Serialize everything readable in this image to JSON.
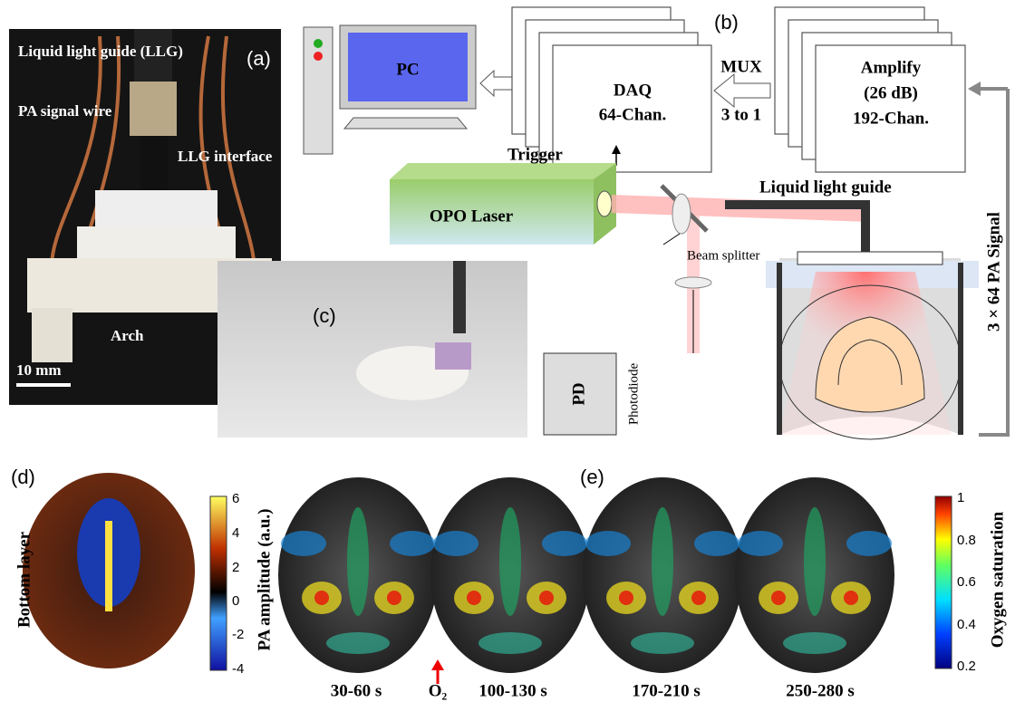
{
  "panel_a": {
    "label": "(a)",
    "annotations": [
      "Liquid light guide (LLG)",
      "PA signal wire",
      "LLG interface",
      "Arch"
    ],
    "scale_bar": "10 mm"
  },
  "panel_b": {
    "label": "(b)",
    "pc": "PC",
    "daq": [
      "DAQ",
      "64-Chan."
    ],
    "mux": [
      "MUX",
      "3 to 1"
    ],
    "amplify": [
      "Amplify",
      "(26 dB)",
      "192-Chan."
    ],
    "signal": "3 × 64 PA Signal",
    "trigger": "Trigger",
    "laser": "OPO Laser",
    "light_guide": "Liquid light guide",
    "beam_splitter": "Beam splitter",
    "pd": "PD",
    "photodiode": "Photodiode"
  },
  "panel_c": {
    "label": "(c)"
  },
  "panel_d": {
    "label": "(d)",
    "layer": "Bottom layer",
    "colorbar_title": "PA amplitude (a.u.)",
    "colorbar_ticks": [
      6,
      4,
      2,
      0,
      -2,
      -4
    ]
  },
  "panel_e": {
    "label": "(e)",
    "times": [
      "30-60 s",
      "100-130 s",
      "170-210 s",
      "250-280 s"
    ],
    "stimulus": "O₂",
    "colorbar_title": "Oxygen saturation",
    "colorbar_ticks": [
      1,
      0.8,
      0.6,
      0.4,
      0.2
    ]
  }
}
